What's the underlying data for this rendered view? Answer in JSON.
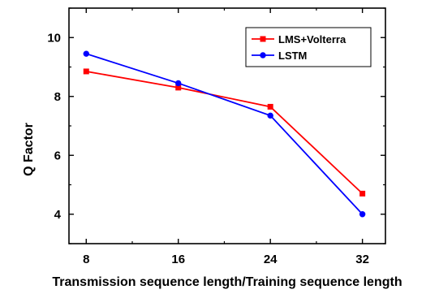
{
  "chart_data": {
    "type": "line",
    "xlabel": "Transmission sequence length/Training sequence length",
    "ylabel": "Q Factor",
    "x": [
      8,
      16,
      24,
      32
    ],
    "x_ticks": [
      "8",
      "16",
      "24",
      "32"
    ],
    "xlim": [
      6.5,
      34
    ],
    "y_ticks": [
      "4",
      "6",
      "8",
      "10"
    ],
    "ylim": [
      3,
      11
    ],
    "grid": false,
    "legend_position": "top-right",
    "series": [
      {
        "name": "LMS+Volterra",
        "color": "#ff0000",
        "marker": "square",
        "values": [
          8.85,
          8.3,
          7.65,
          4.7
        ]
      },
      {
        "name": "LSTM",
        "color": "#0000ff",
        "marker": "circle",
        "values": [
          9.45,
          8.45,
          7.35,
          4.0
        ]
      }
    ]
  }
}
